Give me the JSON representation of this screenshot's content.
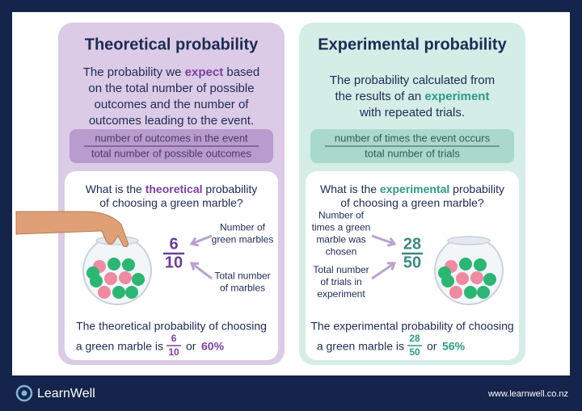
{
  "panels": [
    {
      "title": "Theoretical probability",
      "description": [
        [
          "The probability we ",
          "expect",
          " based"
        ],
        [
          "on the total number of possible"
        ],
        [
          "outcomes and the number of"
        ],
        [
          "outcomes leading to the event."
        ]
      ],
      "formula": {
        "numerator": "number of outcomes in the event",
        "denominator": "total number of possible outcomes"
      },
      "question": [
        [
          "What is the ",
          "theoretical",
          " probability"
        ],
        [
          "of choosing a green marble?"
        ]
      ],
      "fraction": {
        "numerator": "6",
        "denominator": "10"
      },
      "labels": {
        "top": [
          "Number of",
          "green marbles"
        ],
        "bottom": [
          "Total number",
          "of marbles"
        ]
      },
      "answer": {
        "line1": "The theoretical probability of choosing",
        "line2": "a green marble is",
        "fraction": {
          "numerator": "6",
          "denominator": "10"
        },
        "or": "or",
        "percent": "60%"
      }
    },
    {
      "title": "Experimental probability",
      "description": [
        [
          "The probability calculated from"
        ],
        [
          "the results of an ",
          "experiment"
        ],
        [
          "with repeated trials."
        ]
      ],
      "formula": {
        "numerator": "number of times the event occurs",
        "denominator": "total number of trials"
      },
      "question": [
        [
          "What is the ",
          "experimental",
          " probability"
        ],
        [
          "of choosing a green marble?"
        ]
      ],
      "fraction": {
        "numerator": "28",
        "denominator": "50"
      },
      "labels": {
        "top": [
          "Number of",
          "times a green",
          "marble was",
          "chosen"
        ],
        "bottom": [
          "Total number",
          "of trials in",
          "experiment"
        ]
      },
      "answer": {
        "line1": "The experimental probability of choosing",
        "line2": "a green marble is",
        "fraction": {
          "numerator": "28",
          "denominator": "50"
        },
        "or": "or",
        "percent": "56%"
      }
    }
  ],
  "footer": {
    "brand": "LearnWell",
    "url": "www.learnwell.co.nz"
  }
}
